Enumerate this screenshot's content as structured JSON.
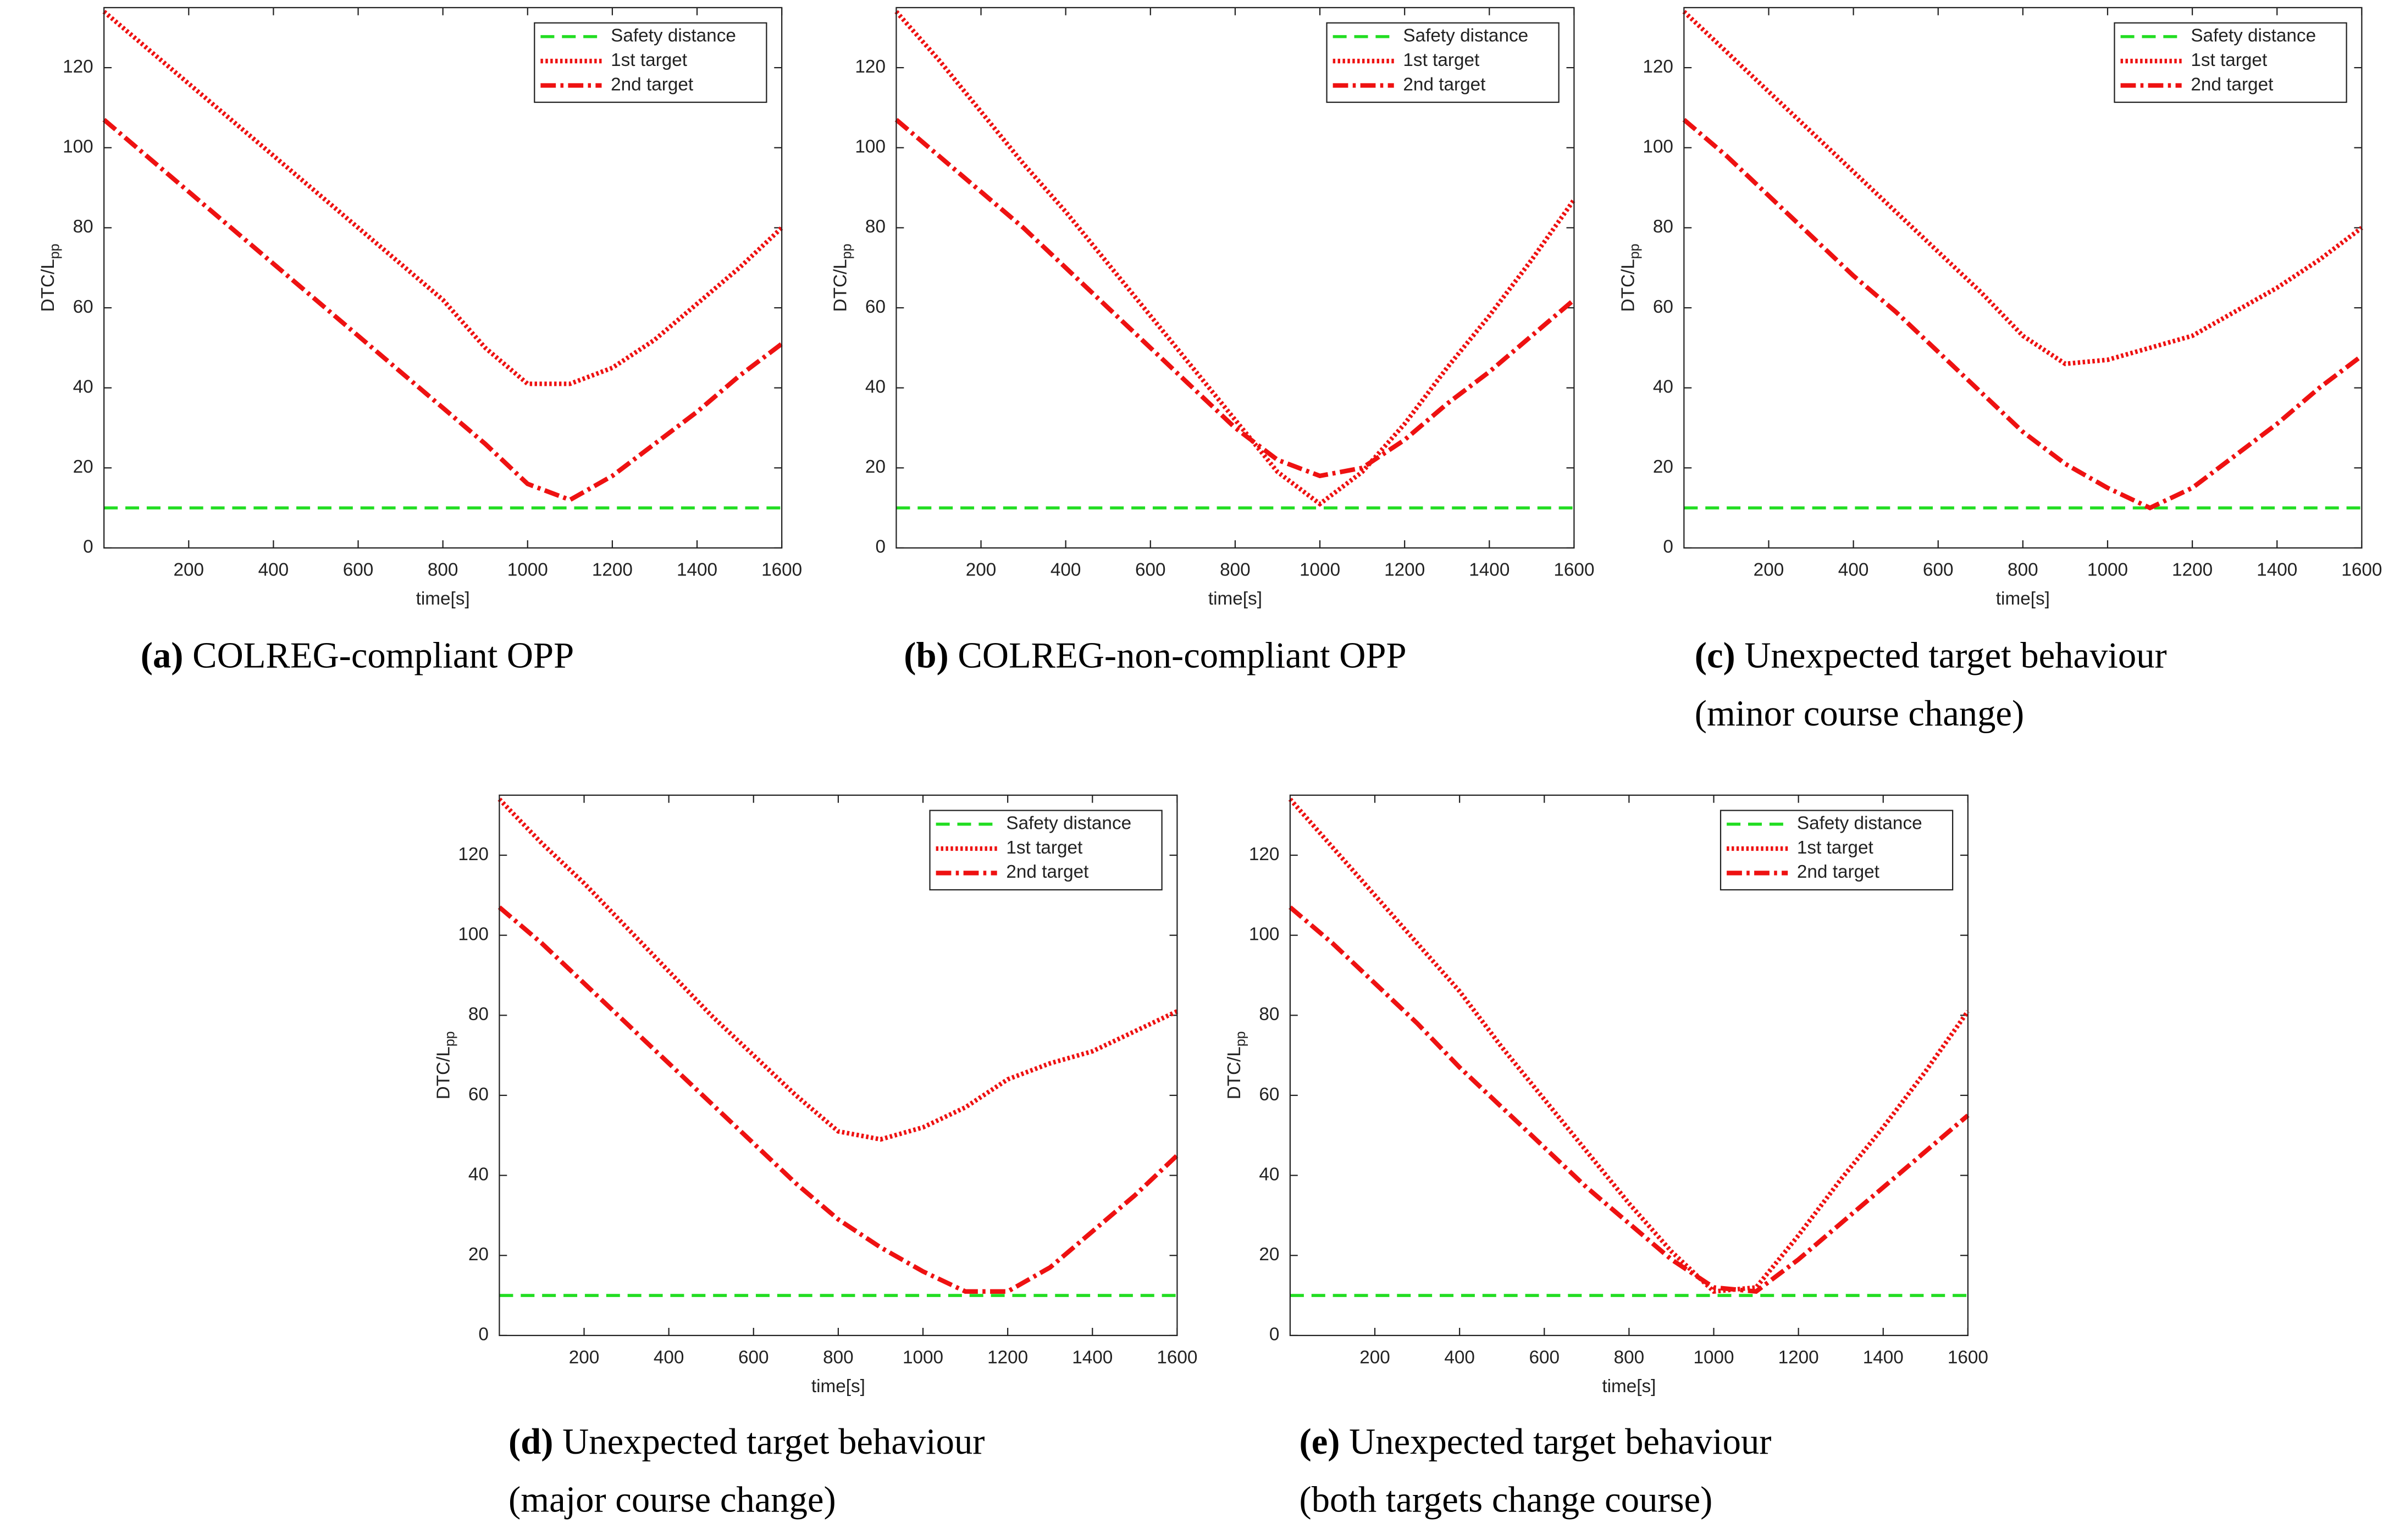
{
  "chart_data": [
    {
      "type": "line",
      "xlabel": "time[s]",
      "ylabel": "DTC/L",
      "ylabel_sub": "pp",
      "caption_label": "(a)",
      "caption": [
        "COLREG-compliant OPP"
      ],
      "x": [
        0,
        100,
        200,
        300,
        400,
        500,
        600,
        700,
        800,
        900,
        1000,
        1100,
        1200,
        1300,
        1400,
        1500,
        1600
      ],
      "xlim": [
        0,
        1600
      ],
      "xticks": [
        200,
        400,
        600,
        800,
        1000,
        1200,
        1400,
        1600
      ],
      "ylim": [
        0,
        135
      ],
      "yticks": [
        0,
        20,
        40,
        60,
        80,
        100,
        120
      ],
      "legend": "upper right",
      "series": [
        {
          "name": "Safety distance",
          "color": "#22dd22",
          "dash": "dashed",
          "values": [
            10,
            10,
            10,
            10,
            10,
            10,
            10,
            10,
            10,
            10,
            10,
            10,
            10,
            10,
            10,
            10,
            10
          ]
        },
        {
          "name": "1st target",
          "color": "#ee1111",
          "dash": "dotted",
          "values": [
            134,
            125,
            116,
            107,
            98,
            89,
            80,
            71,
            62,
            50,
            41,
            41,
            45,
            52,
            61,
            70,
            80
          ]
        },
        {
          "name": "2nd target",
          "color": "#ee1111",
          "dash": "dashdot",
          "values": [
            107,
            98,
            89,
            80,
            71,
            62,
            53,
            44,
            35,
            26,
            16,
            12,
            18,
            26,
            34,
            43,
            51
          ]
        }
      ]
    },
    {
      "type": "line",
      "xlabel": "time[s]",
      "ylabel": "DTC/L",
      "ylabel_sub": "pp",
      "caption_label": "(b)",
      "caption": [
        "COLREG-non-compliant OPP"
      ],
      "x": [
        0,
        100,
        200,
        300,
        400,
        500,
        600,
        700,
        800,
        900,
        1000,
        1100,
        1200,
        1300,
        1400,
        1500,
        1600
      ],
      "xlim": [
        0,
        1600
      ],
      "xticks": [
        200,
        400,
        600,
        800,
        1000,
        1200,
        1400,
        1600
      ],
      "ylim": [
        0,
        135
      ],
      "yticks": [
        0,
        20,
        40,
        60,
        80,
        100,
        120
      ],
      "legend": "upper right",
      "series": [
        {
          "name": "Safety distance",
          "color": "#22dd22",
          "dash": "dashed",
          "values": [
            10,
            10,
            10,
            10,
            10,
            10,
            10,
            10,
            10,
            10,
            10,
            10,
            10,
            10,
            10,
            10,
            10
          ]
        },
        {
          "name": "1st target",
          "color": "#ee1111",
          "dash": "dotted",
          "values": [
            134,
            122,
            109,
            96,
            84,
            71,
            58,
            45,
            32,
            19,
            11,
            19,
            31,
            45,
            58,
            72,
            87
          ]
        },
        {
          "name": "2nd target",
          "color": "#ee1111",
          "dash": "dashdot",
          "values": [
            107,
            98,
            89,
            80,
            70,
            60,
            50,
            40,
            30,
            22,
            18,
            20,
            27,
            36,
            44,
            53,
            62
          ]
        }
      ]
    },
    {
      "type": "line",
      "xlabel": "time[s]",
      "ylabel": "DTC/L",
      "ylabel_sub": "pp",
      "caption_label": "(c)",
      "caption": [
        "Unexpected target behaviour",
        "(minor course change)"
      ],
      "x": [
        0,
        100,
        200,
        300,
        400,
        500,
        600,
        700,
        800,
        900,
        1000,
        1100,
        1200,
        1300,
        1400,
        1500,
        1600
      ],
      "xlim": [
        0,
        1600
      ],
      "xticks": [
        200,
        400,
        600,
        800,
        1000,
        1200,
        1400,
        1600
      ],
      "ylim": [
        0,
        135
      ],
      "yticks": [
        0,
        20,
        40,
        60,
        80,
        100,
        120
      ],
      "legend": "upper right",
      "series": [
        {
          "name": "Safety distance",
          "color": "#22dd22",
          "dash": "dashed",
          "values": [
            10,
            10,
            10,
            10,
            10,
            10,
            10,
            10,
            10,
            10,
            10,
            10,
            10,
            10,
            10,
            10,
            10
          ]
        },
        {
          "name": "1st target",
          "color": "#ee1111",
          "dash": "dotted",
          "values": [
            134,
            124,
            114,
            104,
            94,
            84,
            74,
            64,
            53,
            46,
            47,
            50,
            53,
            59,
            65,
            72,
            80
          ]
        },
        {
          "name": "2nd target",
          "color": "#ee1111",
          "dash": "dashdot",
          "values": [
            107,
            98,
            88,
            78,
            68,
            59,
            49,
            39,
            29,
            21,
            15,
            10,
            15,
            23,
            31,
            40,
            48
          ]
        }
      ]
    },
    {
      "type": "line",
      "xlabel": "time[s]",
      "ylabel": "DTC/L",
      "ylabel_sub": "pp",
      "caption_label": "(d)",
      "caption": [
        "Unexpected target behaviour",
        "(major course change)"
      ],
      "x": [
        0,
        100,
        200,
        300,
        400,
        500,
        600,
        700,
        800,
        900,
        1000,
        1100,
        1200,
        1300,
        1400,
        1500,
        1600
      ],
      "xlim": [
        0,
        1600
      ],
      "xticks": [
        200,
        400,
        600,
        800,
        1000,
        1200,
        1400,
        1600
      ],
      "ylim": [
        0,
        135
      ],
      "yticks": [
        0,
        20,
        40,
        60,
        80,
        100,
        120
      ],
      "legend": "upper right",
      "series": [
        {
          "name": "Safety distance",
          "color": "#22dd22",
          "dash": "dashed",
          "values": [
            10,
            10,
            10,
            10,
            10,
            10,
            10,
            10,
            10,
            10,
            10,
            10,
            10,
            10,
            10,
            10,
            10
          ]
        },
        {
          "name": "1st target",
          "color": "#ee1111",
          "dash": "dotted",
          "values": [
            134,
            123,
            113,
            102,
            91,
            80,
            70,
            60,
            51,
            49,
            52,
            57,
            64,
            68,
            71,
            76,
            81
          ]
        },
        {
          "name": "2nd target",
          "color": "#ee1111",
          "dash": "dashdot",
          "values": [
            107,
            98,
            88,
            78,
            68,
            58,
            48,
            38,
            29,
            22,
            16,
            11,
            11,
            17,
            26,
            35,
            45
          ]
        }
      ]
    },
    {
      "type": "line",
      "xlabel": "time[s]",
      "ylabel": "DTC/L",
      "ylabel_sub": "pp",
      "caption_label": "(e)",
      "caption": [
        "Unexpected target behaviour",
        "(both targets change course)"
      ],
      "x": [
        0,
        100,
        200,
        300,
        400,
        500,
        600,
        700,
        800,
        900,
        1000,
        1100,
        1200,
        1300,
        1400,
        1500,
        1600
      ],
      "xlim": [
        0,
        1600
      ],
      "xticks": [
        200,
        400,
        600,
        800,
        1000,
        1200,
        1400,
        1600
      ],
      "ylim": [
        0,
        135
      ],
      "yticks": [
        0,
        20,
        40,
        60,
        80,
        100,
        120
      ],
      "legend": "upper right",
      "series": [
        {
          "name": "Safety distance",
          "color": "#22dd22",
          "dash": "dashed",
          "values": [
            10,
            10,
            10,
            10,
            10,
            10,
            10,
            10,
            10,
            10,
            10,
            10,
            10,
            10,
            10,
            10,
            10
          ]
        },
        {
          "name": "1st target",
          "color": "#ee1111",
          "dash": "dotted",
          "values": [
            134,
            122,
            110,
            98,
            86,
            72,
            59,
            46,
            33,
            21,
            11,
            12,
            25,
            39,
            52,
            66,
            81
          ]
        },
        {
          "name": "2nd target",
          "color": "#ee1111",
          "dash": "dashdot",
          "values": [
            107,
            98,
            88,
            78,
            67,
            57,
            47,
            37,
            28,
            19,
            12,
            11,
            19,
            28,
            37,
            46,
            55
          ]
        }
      ]
    }
  ]
}
